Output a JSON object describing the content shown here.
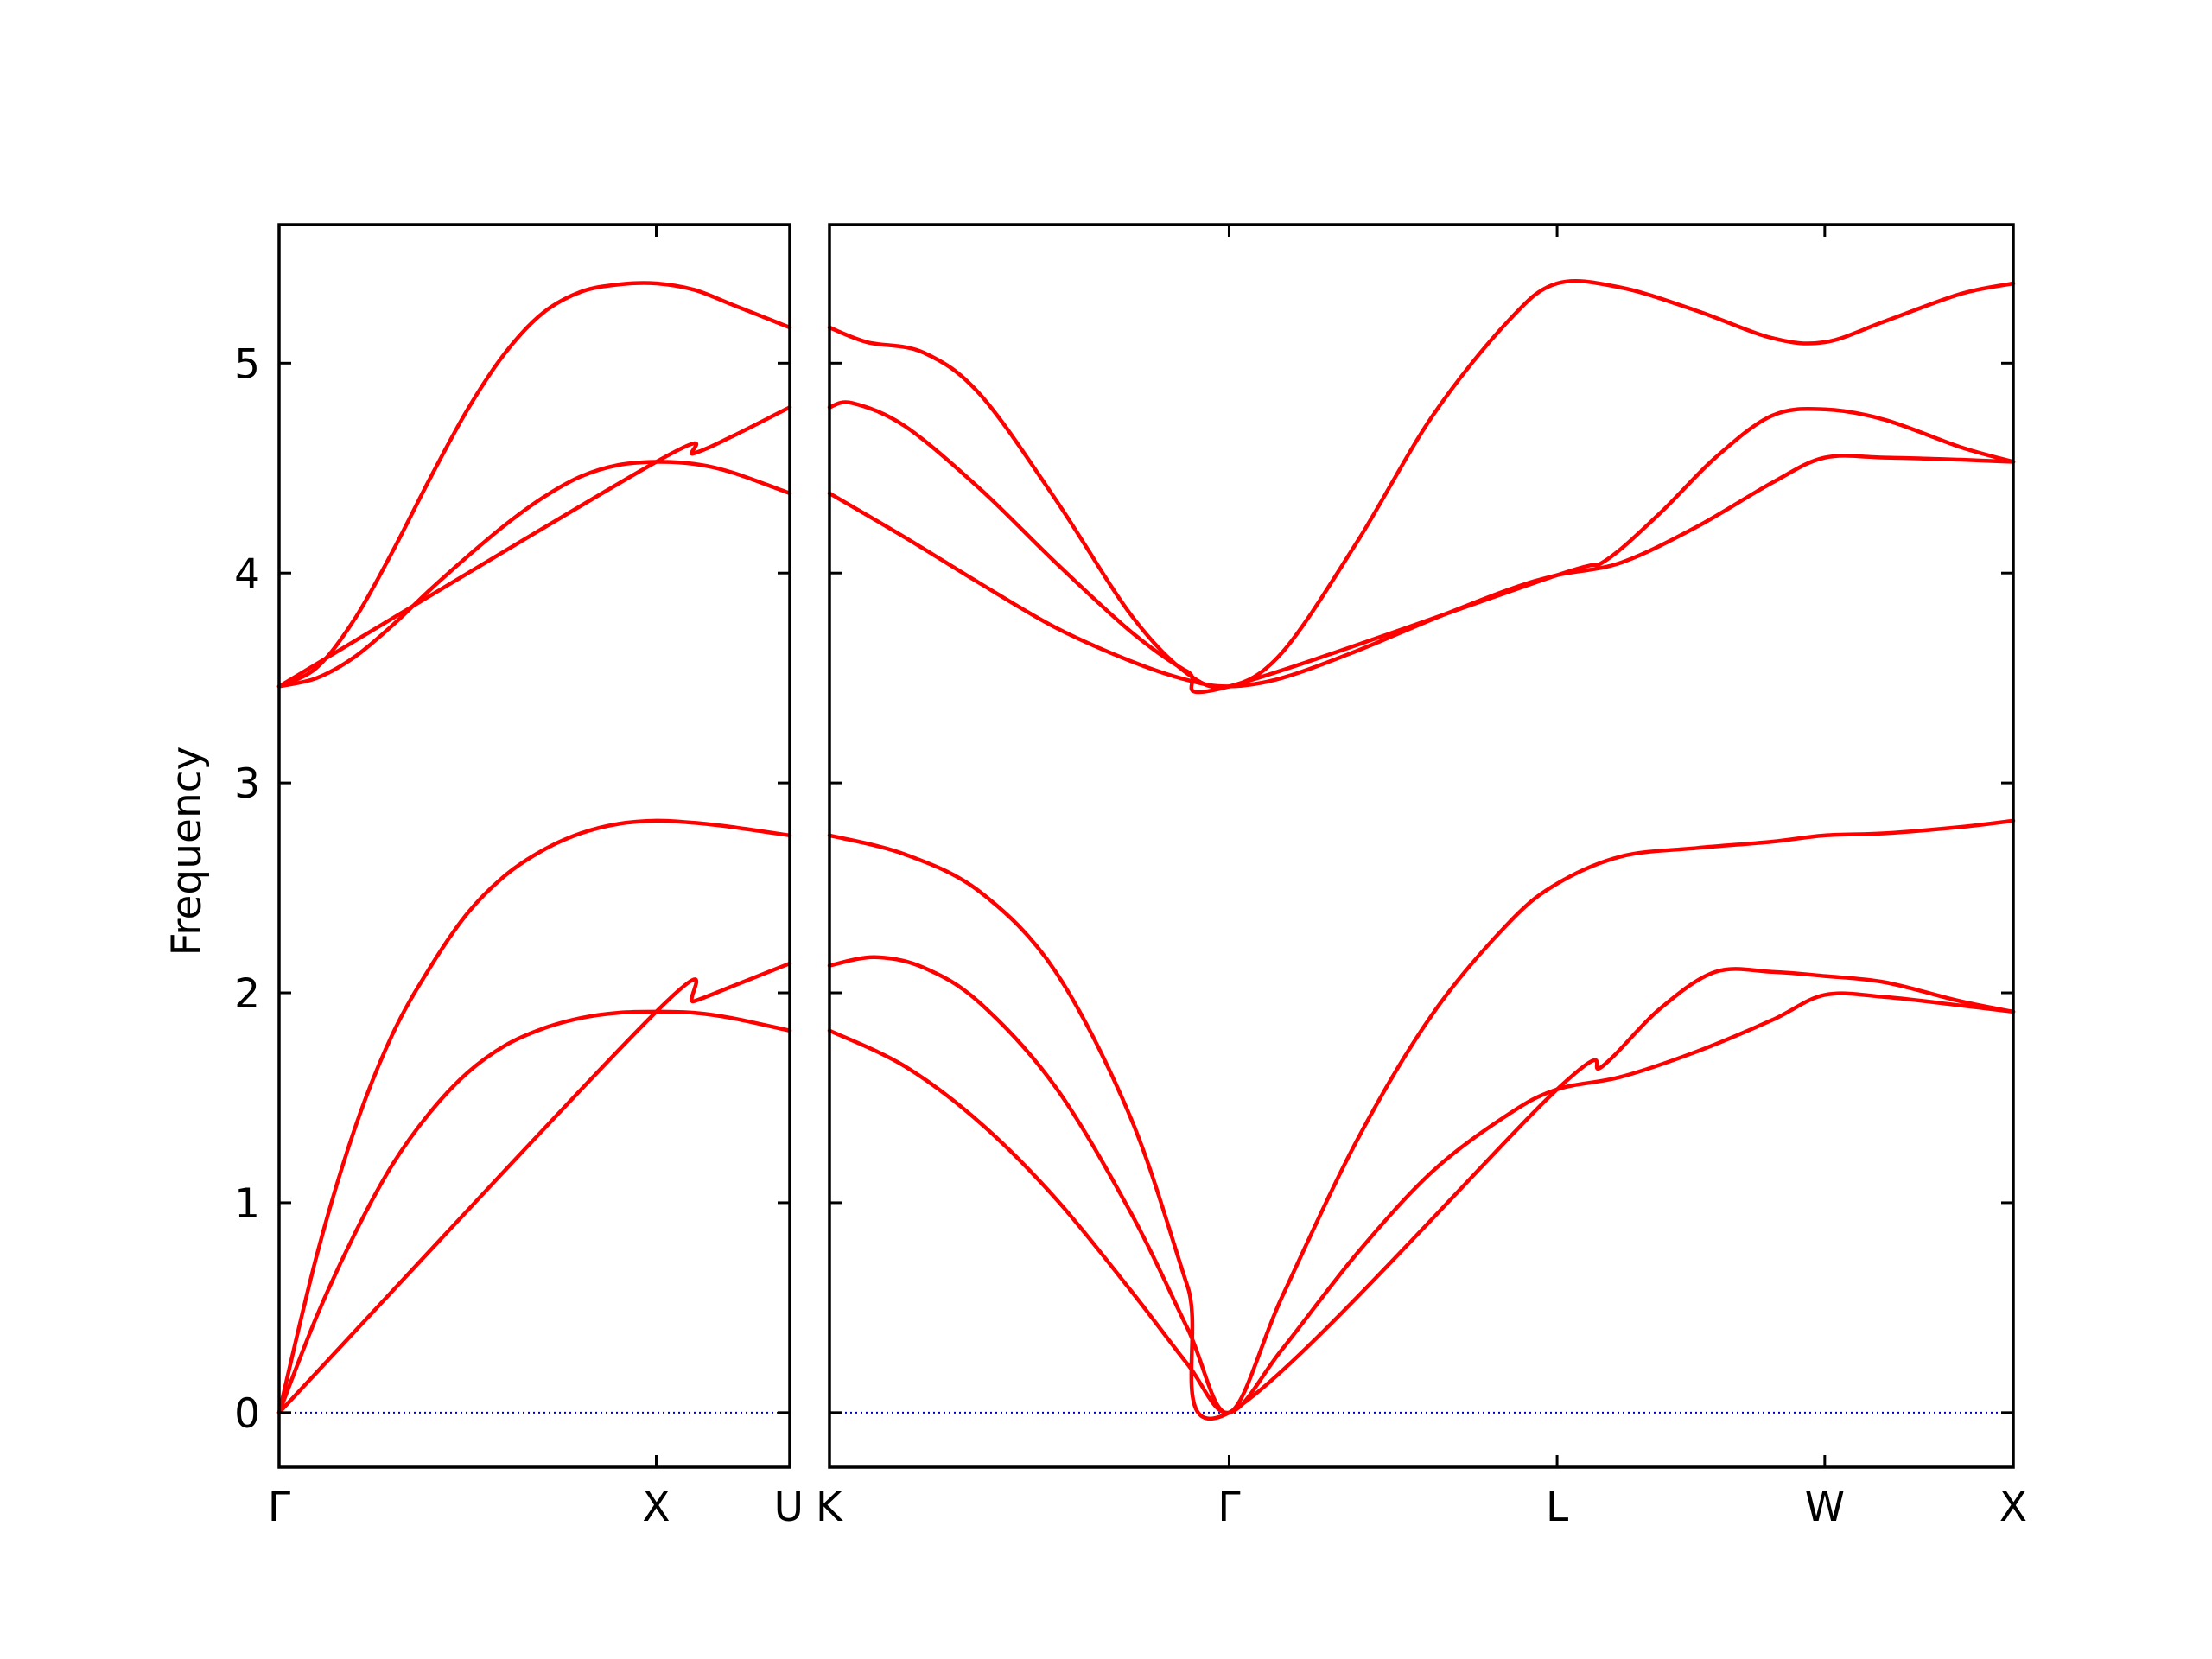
{
  "chart_data": {
    "type": "line",
    "ylabel": "Frequency",
    "ylim": [
      -0.26,
      5.66
    ],
    "yticks": [
      0,
      1,
      2,
      3,
      4,
      5
    ],
    "ytick_labels": [
      "0",
      "1",
      "2",
      "3",
      "4",
      "5"
    ],
    "grid": false,
    "colors": {
      "band": "#ff0000",
      "zero_line": "#0000cc",
      "axes": "#000000"
    },
    "panels": [
      {
        "name": "left-panel",
        "x_range": [
          0,
          1.354
        ],
        "ticks": [
          {
            "x": 0,
            "label": "Γ"
          },
          {
            "x": 1.0,
            "label": "X"
          },
          {
            "x": 1.354,
            "label": "U"
          }
        ],
        "bands": [
          {
            "x": [
              0,
              0.1,
              0.2,
              0.3,
              0.4,
              0.5,
              0.6,
              0.7,
              0.8,
              0.9,
              1.0,
              1.1,
              1.2,
              1.354
            ],
            "y": [
              0,
              0.46,
              0.85,
              1.18,
              1.43,
              1.62,
              1.75,
              1.83,
              1.88,
              1.905,
              1.91,
              1.905,
              1.88,
              1.82
            ]
          },
          {
            "x": [
              0,
              0.1,
              0.2,
              0.3,
              0.4,
              0.5,
              0.6,
              0.7,
              0.8,
              0.9,
              1.0,
              1.1,
              1.2,
              1.354
            ],
            "y": [
              0,
              0.75,
              1.35,
              1.8,
              2.12,
              2.38,
              2.56,
              2.68,
              2.76,
              2.805,
              2.82,
              2.81,
              2.79,
              2.75
            ]
          },
          {
            "x": [
              0,
              1.0,
              1.1,
              1.2,
              1.354
            ],
            "y": [
              0,
              1.91,
              1.96,
              2.03,
              2.14
            ]
          },
          {
            "x": [
              0,
              0.1,
              0.2,
              0.3,
              0.4,
              0.5,
              0.6,
              0.7,
              0.8,
              0.9,
              1.0,
              1.1,
              1.2,
              1.354
            ],
            "y": [
              3.46,
              3.5,
              3.6,
              3.75,
              3.92,
              4.08,
              4.23,
              4.36,
              4.46,
              4.515,
              4.53,
              4.52,
              4.48,
              4.38
            ]
          },
          {
            "x": [
              0,
              0.1,
              0.2,
              0.3,
              0.4,
              0.5,
              0.6,
              0.7,
              0.8,
              0.9,
              1.0,
              1.1,
              1.2,
              1.354
            ],
            "y": [
              3.46,
              3.55,
              3.78,
              4.1,
              4.45,
              4.78,
              5.05,
              5.24,
              5.34,
              5.375,
              5.38,
              5.35,
              5.28,
              5.17
            ]
          },
          {
            "x": [
              0,
              1.0,
              1.1,
              1.2,
              1.354
            ],
            "y": [
              3.46,
              4.53,
              4.57,
              4.65,
              4.79
            ]
          }
        ]
      },
      {
        "name": "right-panel",
        "x_range": [
          0,
          3.14
        ],
        "ticks": [
          {
            "x": 0,
            "label": "K"
          },
          {
            "x": 1.06,
            "label": "Γ"
          },
          {
            "x": 1.93,
            "label": "L"
          },
          {
            "x": 2.64,
            "label": "W"
          },
          {
            "x": 3.14,
            "label": "X"
          }
        ],
        "bands": [
          {
            "x": [
              0,
              0.2,
              0.4,
              0.6,
              0.8,
              0.95,
              1.06,
              1.2,
              1.4,
              1.6,
              1.8,
              1.93,
              2.1,
              2.3,
              2.5,
              2.64,
              2.8,
              3.0,
              3.14
            ],
            "y": [
              1.82,
              1.65,
              1.38,
              1.02,
              0.58,
              0.23,
              0,
              0.3,
              0.76,
              1.15,
              1.42,
              1.54,
              1.6,
              1.72,
              1.87,
              1.99,
              1.98,
              1.94,
              1.91
            ]
          },
          {
            "x": [
              0,
              0.12,
              0.25,
              0.4,
              0.6,
              0.8,
              0.95,
              1.06,
              1.2,
              1.4,
              1.6,
              1.8,
              1.93,
              2.1,
              2.3,
              2.5,
              2.64,
              2.8,
              3.0,
              3.14
            ],
            "y": [
              2.13,
              2.17,
              2.12,
              1.95,
              1.55,
              0.95,
              0.4,
              0,
              0.55,
              1.3,
              1.9,
              2.33,
              2.52,
              2.65,
              2.69,
              2.72,
              2.75,
              2.76,
              2.79,
              2.82
            ]
          },
          {
            "x": [
              0,
              0.2,
              0.4,
              0.6,
              0.8,
              0.95,
              1.06,
              1.93,
              2.05,
              2.2,
              2.35,
              2.5,
              2.64,
              2.8,
              3.0,
              3.14
            ],
            "y": [
              2.75,
              2.66,
              2.48,
              2.1,
              1.4,
              0.6,
              0,
              1.54,
              1.65,
              1.92,
              2.1,
              2.1,
              2.08,
              2.05,
              1.96,
              1.91
            ]
          },
          {
            "x": [
              0,
              0.2,
              0.4,
              0.6,
              0.8,
              0.95,
              1.06,
              1.2,
              1.4,
              1.6,
              1.8,
              1.93,
              2.1,
              2.3,
              2.5,
              2.64,
              2.8,
              3.0,
              3.14
            ],
            "y": [
              4.38,
              4.17,
              3.95,
              3.74,
              3.58,
              3.49,
              3.46,
              3.5,
              3.63,
              3.78,
              3.92,
              3.99,
              4.05,
              4.22,
              4.43,
              4.55,
              4.55,
              4.54,
              4.53
            ]
          },
          {
            "x": [
              0,
              0.06,
              0.2,
              0.4,
              0.6,
              0.8,
              0.95,
              1.06,
              1.93,
              2.05,
              2.2,
              2.35,
              2.5,
              2.64,
              2.8,
              3.0,
              3.14
            ],
            "y": [
              4.79,
              4.81,
              4.7,
              4.4,
              4.05,
              3.72,
              3.53,
              3.46,
              3.99,
              4.05,
              4.28,
              4.55,
              4.75,
              4.78,
              4.73,
              4.6,
              4.53
            ]
          },
          {
            "x": [
              0,
              0.1,
              0.25,
              0.4,
              0.6,
              0.8,
              0.95,
              1.06,
              1.2,
              1.4,
              1.6,
              1.8,
              1.93,
              2.1,
              2.3,
              2.5,
              2.64,
              2.8,
              3.0,
              3.14
            ],
            "y": [
              5.17,
              5.1,
              5.05,
              4.85,
              4.35,
              3.8,
              3.52,
              3.46,
              3.62,
              4.15,
              4.75,
              5.2,
              5.38,
              5.36,
              5.25,
              5.12,
              5.1,
              5.2,
              5.33,
              5.38
            ]
          }
        ]
      }
    ]
  }
}
